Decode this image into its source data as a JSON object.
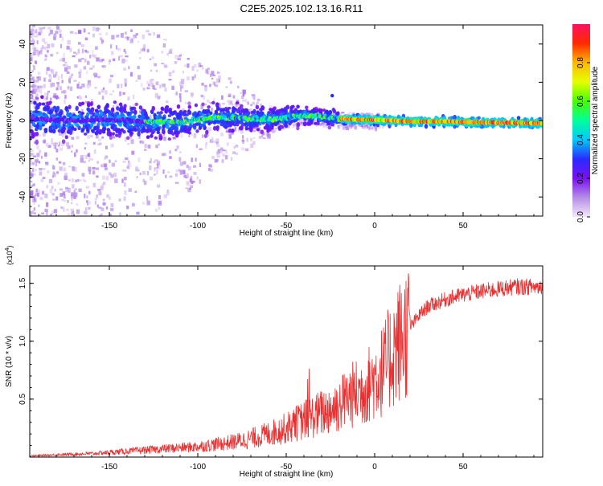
{
  "title": "C2E5.2025.102.13.16.R11",
  "chart_data": [
    {
      "type": "heatmap",
      "name": "spectrogram",
      "xlabel": "Height of straight line (km)",
      "ylabel": "Frequency (Hz)",
      "xlim": [
        -195,
        95
      ],
      "ylim": [
        -50,
        50
      ],
      "xticks": [
        -150,
        -100,
        -50,
        0,
        50
      ],
      "xtick_labels": [
        "-150",
        "-100",
        "-50",
        "0",
        "50"
      ],
      "yticks": [
        -40,
        -20,
        0,
        20,
        40
      ],
      "ytick_labels": [
        "-40",
        "-20",
        "0",
        "20",
        "40"
      ],
      "colorbar": {
        "label": "Normalized spectral amplitude",
        "range": [
          0,
          1
        ],
        "ticks": [
          0.0,
          0.2,
          0.4,
          0.6,
          0.8
        ],
        "tick_labels": [
          "0.0",
          "0.2",
          "0.4",
          "0.6",
          "0.8"
        ],
        "colors": [
          "#f4e8fb",
          "#b48ee6",
          "#7a10f0",
          "#2a2bff",
          "#00c8ff",
          "#00ff9c",
          "#48ff00",
          "#e4ff00",
          "#ffb800",
          "#ff2a00",
          "#ff1060"
        ]
      },
      "ridge": {
        "x": [
          -195,
          -170,
          -150,
          -130,
          -110,
          -100,
          -90,
          -80,
          -70,
          -60,
          -50,
          -40,
          -30,
          -20,
          -10,
          0,
          10,
          20,
          40,
          60,
          80,
          95
        ],
        "freq": [
          1.0,
          0.0,
          0.5,
          -0.5,
          -1.0,
          0.5,
          1.5,
          1.5,
          1.0,
          0.5,
          1.5,
          2.5,
          2.0,
          1.0,
          0.5,
          0.3,
          0.0,
          -0.5,
          -0.5,
          -1.0,
          -1.2,
          -1.5
        ]
      },
      "peak_point": {
        "x": -24,
        "freq": 13
      }
    },
    {
      "type": "line",
      "name": "snr",
      "xlabel": "Height of straight line (km)",
      "ylabel": "SNR (10 * v/v)",
      "y_multiplier": "(x10",
      "y_multiplier_exp": "4",
      "y_multiplier_close": ")",
      "xlim": [
        -195,
        95
      ],
      "ylim": [
        0,
        1.65
      ],
      "xticks": [
        -150,
        -100,
        -50,
        0,
        50
      ],
      "xtick_labels": [
        "-150",
        "-100",
        "-50",
        "0",
        "50"
      ],
      "yticks": [
        0.5,
        1.0,
        1.5
      ],
      "ytick_labels": [
        "0.5",
        "1.0",
        "1.5"
      ],
      "color": "#e83030",
      "series": [
        {
          "name": "SNR",
          "x": [
            -195,
            -180,
            -160,
            -140,
            -120,
            -100,
            -90,
            -80,
            -70,
            -60,
            -50,
            -40,
            -30,
            -20,
            -15,
            -10,
            -5,
            0,
            5,
            10,
            15,
            20,
            25,
            30,
            40,
            50,
            60,
            70,
            80,
            95
          ],
          "values": [
            0.01,
            0.02,
            0.03,
            0.05,
            0.07,
            0.09,
            0.11,
            0.13,
            0.16,
            0.2,
            0.25,
            0.32,
            0.38,
            0.45,
            0.52,
            0.55,
            0.6,
            0.68,
            0.75,
            0.9,
            1.02,
            1.12,
            1.22,
            1.3,
            1.36,
            1.4,
            1.43,
            1.45,
            1.47,
            1.47
          ]
        }
      ]
    }
  ]
}
